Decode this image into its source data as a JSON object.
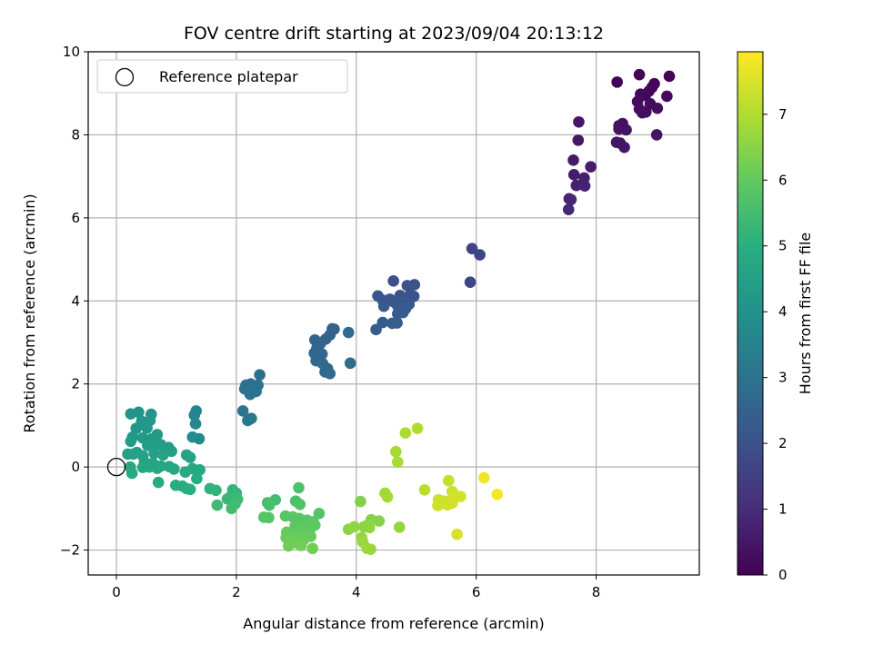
{
  "chart_data": {
    "type": "scatter",
    "title": "FOV centre drift starting at 2023/09/04 20:13:12",
    "xlabel": "Angular distance from reference (arcmin)",
    "ylabel": "Rotation from reference (arcmin)",
    "xlim": [
      -0.47,
      9.72
    ],
    "ylim": [
      -2.6,
      10.0
    ],
    "xticks": [
      "0",
      "2",
      "4",
      "6",
      "8"
    ],
    "yticks": [
      "−2",
      "0",
      "2",
      "4",
      "6",
      "8",
      "10"
    ],
    "grid": true,
    "legend": {
      "position": "top-left",
      "entries": [
        {
          "label": "Reference platepar",
          "marker": "open-circle",
          "x": 0.0,
          "y": 0.0
        }
      ]
    },
    "colorbar": {
      "label": "Hours from first FF file",
      "colormap": "viridis",
      "range": [
        0,
        7.95
      ],
      "ticks": [
        "0",
        "1",
        "2",
        "3",
        "4",
        "5",
        "6",
        "7"
      ]
    },
    "points": [
      [
        8.35,
        9.27,
        0.05
      ],
      [
        8.72,
        9.45,
        0.05
      ],
      [
        9.22,
        9.41,
        0.08
      ],
      [
        8.97,
        9.23,
        0.1
      ],
      [
        8.93,
        9.14,
        0.12
      ],
      [
        8.88,
        9.05,
        0.14
      ],
      [
        8.82,
        8.95,
        0.16
      ],
      [
        8.74,
        8.98,
        0.18
      ],
      [
        9.18,
        8.93,
        0.2
      ],
      [
        8.69,
        8.8,
        0.22
      ],
      [
        8.9,
        8.75,
        0.24
      ],
      [
        8.77,
        8.53,
        0.26
      ],
      [
        8.83,
        8.55,
        0.28
      ],
      [
        8.72,
        8.62,
        0.3
      ],
      [
        9.02,
        8.64,
        0.32
      ],
      [
        8.44,
        8.27,
        0.34
      ],
      [
        8.38,
        8.22,
        0.36
      ],
      [
        8.38,
        8.14,
        0.38
      ],
      [
        8.5,
        8.12,
        0.4
      ],
      [
        9.01,
        8.0,
        0.42
      ],
      [
        8.34,
        7.82,
        0.44
      ],
      [
        8.4,
        7.8,
        0.46
      ],
      [
        8.47,
        7.7,
        0.48
      ],
      [
        7.71,
        8.31,
        0.5
      ],
      [
        7.7,
        7.87,
        0.52
      ],
      [
        7.62,
        7.39,
        0.56
      ],
      [
        7.91,
        7.23,
        0.6
      ],
      [
        7.63,
        7.04,
        0.64
      ],
      [
        7.8,
        6.96,
        0.68
      ],
      [
        7.67,
        6.78,
        0.72
      ],
      [
        7.81,
        6.77,
        0.76
      ],
      [
        7.55,
        6.46,
        0.8
      ],
      [
        7.58,
        6.44,
        0.84
      ],
      [
        7.54,
        6.2,
        0.88
      ],
      [
        5.93,
        5.26,
        1.6
      ],
      [
        6.06,
        5.11,
        1.65
      ],
      [
        5.9,
        4.45,
        1.7
      ],
      [
        4.62,
        4.48,
        1.95
      ],
      [
        4.97,
        4.39,
        1.98
      ],
      [
        4.85,
        4.37,
        2.0
      ],
      [
        4.73,
        4.13,
        2.02
      ],
      [
        4.9,
        4.15,
        2.04
      ],
      [
        4.96,
        4.11,
        2.06
      ],
      [
        4.36,
        4.12,
        2.08
      ],
      [
        4.56,
        4.04,
        2.1
      ],
      [
        4.44,
        4.02,
        2.12
      ],
      [
        4.62,
        3.98,
        2.14
      ],
      [
        4.76,
        3.96,
        2.16
      ],
      [
        4.88,
        3.92,
        2.18
      ],
      [
        4.69,
        3.88,
        2.2
      ],
      [
        4.46,
        3.87,
        2.22
      ],
      [
        4.82,
        3.81,
        2.24
      ],
      [
        4.78,
        3.72,
        2.26
      ],
      [
        4.69,
        3.69,
        2.28
      ],
      [
        4.44,
        3.48,
        2.3
      ],
      [
        4.6,
        3.46,
        2.32
      ],
      [
        4.68,
        3.47,
        2.34
      ],
      [
        4.33,
        3.31,
        2.36
      ],
      [
        3.6,
        3.33,
        2.45
      ],
      [
        3.63,
        3.32,
        2.47
      ],
      [
        3.56,
        3.18,
        2.5
      ],
      [
        3.49,
        3.08,
        2.52
      ],
      [
        3.31,
        3.06,
        2.54
      ],
      [
        3.4,
        2.97,
        2.56
      ],
      [
        3.34,
        2.85,
        2.58
      ],
      [
        3.3,
        2.74,
        2.6
      ],
      [
        3.43,
        2.72,
        2.62
      ],
      [
        3.33,
        2.56,
        2.64
      ],
      [
        3.44,
        2.49,
        2.66
      ],
      [
        3.52,
        2.37,
        2.68
      ],
      [
        3.48,
        2.29,
        2.7
      ],
      [
        3.56,
        2.25,
        2.72
      ],
      [
        3.87,
        3.24,
        2.74
      ],
      [
        3.9,
        2.5,
        2.76
      ],
      [
        2.39,
        2.22,
        2.9
      ],
      [
        2.24,
        2.0,
        2.92
      ],
      [
        2.16,
        1.97,
        2.94
      ],
      [
        2.36,
        1.97,
        2.96
      ],
      [
        2.21,
        1.85,
        2.98
      ],
      [
        2.33,
        1.82,
        3.0
      ],
      [
        2.14,
        1.88,
        3.02
      ],
      [
        2.23,
        1.75,
        3.04
      ],
      [
        2.11,
        1.35,
        3.1
      ],
      [
        2.25,
        1.17,
        3.13
      ],
      [
        2.19,
        1.12,
        3.16
      ],
      [
        1.33,
        1.35,
        3.6
      ],
      [
        1.3,
        1.25,
        3.65
      ],
      [
        1.32,
        1.04,
        3.7
      ],
      [
        1.38,
        0.68,
        3.75
      ],
      [
        1.27,
        0.72,
        3.8
      ],
      [
        0.37,
        1.32,
        4.1
      ],
      [
        0.24,
        1.28,
        4.12
      ],
      [
        0.58,
        1.27,
        4.14
      ],
      [
        0.42,
        1.1,
        4.16
      ],
      [
        0.56,
        1.12,
        4.18
      ],
      [
        0.33,
        0.93,
        4.2
      ],
      [
        0.51,
        0.94,
        4.22
      ],
      [
        0.68,
        0.78,
        4.24
      ],
      [
        0.27,
        0.72,
        4.26
      ],
      [
        0.44,
        0.7,
        4.28
      ],
      [
        0.59,
        0.68,
        4.3
      ],
      [
        0.24,
        0.62,
        4.32
      ],
      [
        0.61,
        0.56,
        4.34
      ],
      [
        0.74,
        0.54,
        4.36
      ],
      [
        0.87,
        0.47,
        4.38
      ],
      [
        0.52,
        0.52,
        4.4
      ],
      [
        0.92,
        0.38,
        4.42
      ],
      [
        0.34,
        0.35,
        4.44
      ],
      [
        0.19,
        0.31,
        4.46
      ],
      [
        0.28,
        0.31,
        4.48
      ],
      [
        0.63,
        0.33,
        4.5
      ],
      [
        0.44,
        0.27,
        4.52
      ],
      [
        0.78,
        0.29,
        4.54
      ],
      [
        1.17,
        0.29,
        4.56
      ],
      [
        1.23,
        0.23,
        4.58
      ],
      [
        0.47,
        0.12,
        4.6
      ],
      [
        0.61,
        0.09,
        4.62
      ],
      [
        0.74,
        0.02,
        4.64
      ],
      [
        0.88,
        0.01,
        4.66
      ],
      [
        0.23,
        0.0,
        4.68
      ],
      [
        0.44,
        -0.01,
        4.7
      ],
      [
        0.55,
        0.0,
        4.72
      ],
      [
        0.68,
        -0.03,
        4.74
      ],
      [
        1.27,
        -0.04,
        4.76
      ],
      [
        0.96,
        -0.05,
        4.78
      ],
      [
        0.26,
        -0.15,
        4.8
      ],
      [
        1.15,
        -0.12,
        4.82
      ],
      [
        1.39,
        -0.07,
        4.84
      ],
      [
        1.34,
        -0.28,
        4.86
      ],
      [
        0.7,
        -0.37,
        4.88
      ],
      [
        0.99,
        -0.44,
        4.9
      ],
      [
        1.1,
        -0.46,
        4.92
      ],
      [
        1.17,
        -0.52,
        4.94
      ],
      [
        1.23,
        -0.54,
        4.96
      ],
      [
        1.56,
        -0.52,
        5.1
      ],
      [
        1.66,
        -0.56,
        5.14
      ],
      [
        1.94,
        -0.55,
        5.18
      ],
      [
        2.0,
        -0.63,
        5.22
      ],
      [
        1.91,
        -0.7,
        5.26
      ],
      [
        1.85,
        -0.77,
        5.3
      ],
      [
        2.02,
        -0.78,
        5.34
      ],
      [
        1.68,
        -0.92,
        5.38
      ],
      [
        1.98,
        -0.89,
        5.42
      ],
      [
        1.92,
        -1.0,
        5.46
      ],
      [
        2.65,
        -0.79,
        5.5
      ],
      [
        2.52,
        -0.86,
        5.54
      ],
      [
        2.55,
        -0.92,
        5.58
      ],
      [
        2.99,
        -0.82,
        5.62
      ],
      [
        3.04,
        -0.5,
        5.66
      ],
      [
        3.06,
        -0.9,
        5.7
      ],
      [
        3.38,
        -1.12,
        5.74
      ],
      [
        2.46,
        -1.21,
        5.78
      ],
      [
        2.54,
        -1.22,
        5.8
      ],
      [
        2.82,
        -1.18,
        5.82
      ],
      [
        2.94,
        -1.2,
        5.84
      ],
      [
        3.05,
        -1.24,
        5.86
      ],
      [
        3.18,
        -1.28,
        5.88
      ],
      [
        3.28,
        -1.32,
        5.9
      ],
      [
        3.31,
        -1.4,
        5.92
      ],
      [
        2.98,
        -1.42,
        5.94
      ],
      [
        3.14,
        -1.46,
        5.96
      ],
      [
        3.22,
        -1.53,
        5.98
      ],
      [
        2.84,
        -1.57,
        6.0
      ],
      [
        3.06,
        -1.6,
        6.02
      ],
      [
        2.92,
        -1.65,
        6.04
      ],
      [
        3.24,
        -1.67,
        6.06
      ],
      [
        2.83,
        -1.7,
        6.08
      ],
      [
        3.0,
        -1.72,
        6.1
      ],
      [
        3.12,
        -1.76,
        6.12
      ],
      [
        2.88,
        -1.79,
        6.14
      ],
      [
        3.02,
        -1.84,
        6.16
      ],
      [
        2.87,
        -1.9,
        6.18
      ],
      [
        3.08,
        -1.89,
        6.2
      ],
      [
        3.27,
        -1.96,
        6.22
      ],
      [
        4.07,
        -0.83,
        6.4
      ],
      [
        4.25,
        -1.27,
        6.43
      ],
      [
        4.38,
        -1.3,
        6.46
      ],
      [
        4.21,
        -1.38,
        6.49
      ],
      [
        4.13,
        -1.44,
        6.52
      ],
      [
        3.87,
        -1.5,
        6.55
      ],
      [
        3.97,
        -1.44,
        6.58
      ],
      [
        4.22,
        -1.46,
        6.61
      ],
      [
        4.72,
        -1.45,
        6.64
      ],
      [
        4.09,
        -1.7,
        6.67
      ],
      [
        4.11,
        -1.81,
        6.7
      ],
      [
        4.18,
        -1.96,
        6.73
      ],
      [
        4.24,
        -1.98,
        6.76
      ],
      [
        4.48,
        -0.63,
        6.82
      ],
      [
        4.52,
        -0.72,
        6.85
      ],
      [
        4.66,
        0.37,
        6.88
      ],
      [
        4.69,
        0.12,
        6.91
      ],
      [
        4.82,
        0.82,
        6.94
      ],
      [
        5.02,
        0.93,
        6.98
      ],
      [
        5.14,
        -0.55,
        7.1
      ],
      [
        5.54,
        -0.33,
        7.25
      ],
      [
        5.6,
        -0.59,
        7.28
      ],
      [
        5.37,
        -0.79,
        7.3
      ],
      [
        5.47,
        -0.82,
        7.32
      ],
      [
        5.41,
        -0.88,
        7.34
      ],
      [
        5.52,
        -0.91,
        7.36
      ],
      [
        5.36,
        -0.93,
        7.38
      ],
      [
        5.6,
        -0.87,
        7.4
      ],
      [
        5.62,
        -0.68,
        7.42
      ],
      [
        5.74,
        -0.71,
        7.44
      ],
      [
        5.68,
        -1.62,
        7.46
      ],
      [
        6.13,
        -0.26,
        7.8
      ],
      [
        6.35,
        -0.66,
        7.85
      ]
    ]
  }
}
